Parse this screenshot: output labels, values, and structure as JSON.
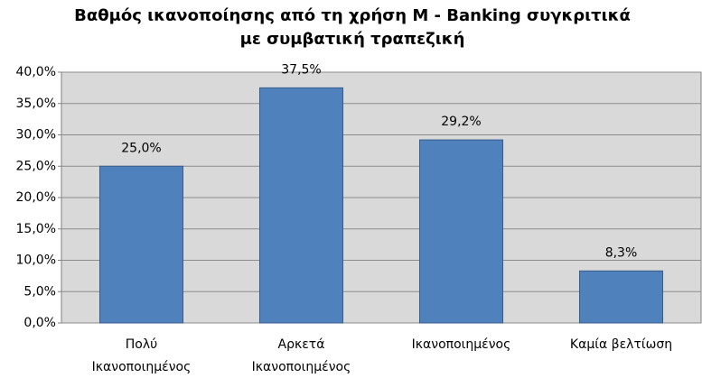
{
  "chart_data": {
    "type": "bar",
    "title": [
      "Βαθμός ικανοποίησης από τη χρήση M - Banking συγκριτικά",
      "με συμβατική τραπεζική"
    ],
    "categories": [
      "Πολύ Ικανοποιημένος",
      "Αρκετά Ικανοποιημένος",
      "Ικανοποιημένος",
      "Καμία βελτίωση"
    ],
    "values": [
      25.0,
      37.5,
      29.2,
      8.3
    ],
    "value_labels": [
      "25,0%",
      "37,5%",
      "29,2%",
      "8,3%"
    ],
    "color": "#4f81bd",
    "ylim": [
      0,
      40
    ],
    "yticks": [
      {
        "value": 0,
        "label": "0,0%"
      },
      {
        "value": 5,
        "label": "5,0%"
      },
      {
        "value": 10,
        "label": "10,0%"
      },
      {
        "value": 15,
        "label": "15,0%"
      },
      {
        "value": 20,
        "label": "20,0%"
      },
      {
        "value": 25,
        "label": "25,0%"
      },
      {
        "value": 30,
        "label": "30,0%"
      },
      {
        "value": 35,
        "label": "35,0%"
      },
      {
        "value": 40,
        "label": "40,0%"
      }
    ],
    "grid": true
  }
}
